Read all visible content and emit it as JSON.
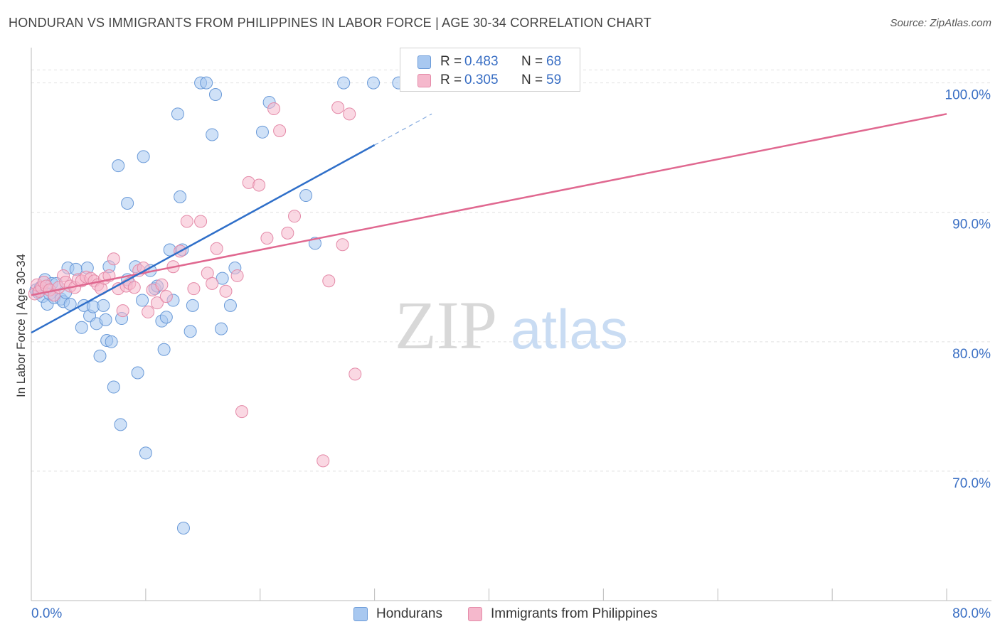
{
  "title": "HONDURAN VS IMMIGRANTS FROM PHILIPPINES IN LABOR FORCE | AGE 30-34 CORRELATION CHART",
  "source": "Source: ZipAtlas.com",
  "watermark": {
    "zip": "ZIP",
    "atlas": "atlas"
  },
  "legend_top": [
    {
      "r_label": "R = ",
      "r_value": "0.483",
      "n_label": "N = ",
      "n_value": "68"
    },
    {
      "r_label": "R = ",
      "r_value": "0.305",
      "n_label": "N = ",
      "n_value": "59"
    }
  ],
  "legend_bottom": [
    {
      "label": "Hondurans"
    },
    {
      "label": "Immigrants from Philippines"
    }
  ],
  "chart_data": {
    "type": "scatter",
    "title": "HONDURAN VS IMMIGRANTS FROM PHILIPPINES IN LABOR FORCE | AGE 30-34 CORRELATION CHART",
    "xlabel": "",
    "ylabel": "In Labor Force | Age 30-34",
    "xlim": [
      0,
      80
    ],
    "ylim": [
      60,
      103
    ],
    "x_tick_labels": [
      "0.0%",
      "80.0%"
    ],
    "y_ticks": [
      70,
      80,
      90,
      100
    ],
    "y_tick_labels": [
      "70.0%",
      "80.0%",
      "90.0%",
      "100.0%"
    ],
    "grid": true,
    "colors": {
      "hondurans_fill": "#a8c8f0",
      "hondurans_stroke": "#6a9ad8",
      "hondurans_line": "#2f6fc9",
      "philippines_fill": "#f5b8cc",
      "philippines_stroke": "#e48aa8",
      "philippines_line": "#e06890",
      "axis_label": "#3a6fc4",
      "grid": "#e0e0e0"
    },
    "series": [
      {
        "name": "Hondurans",
        "r": 0.483,
        "n": 68,
        "trend": {
          "x0": 0,
          "y0": 80.7,
          "x1": 30,
          "y1": 95.2,
          "dash_to_x": 35,
          "dash_to_y": 97.6
        },
        "points": [
          [
            0.4,
            84.0
          ],
          [
            0.6,
            83.8
          ],
          [
            0.8,
            84.2
          ],
          [
            1.0,
            83.5
          ],
          [
            1.2,
            84.8
          ],
          [
            1.4,
            82.9
          ],
          [
            1.6,
            83.7
          ],
          [
            1.8,
            84.5
          ],
          [
            2.0,
            83.4
          ],
          [
            2.2,
            84.5
          ],
          [
            2.6,
            83.3
          ],
          [
            2.8,
            83.1
          ],
          [
            3.0,
            83.8
          ],
          [
            3.2,
            85.7
          ],
          [
            3.4,
            82.9
          ],
          [
            3.9,
            85.6
          ],
          [
            4.4,
            81.1
          ],
          [
            4.6,
            82.8
          ],
          [
            4.9,
            85.7
          ],
          [
            5.1,
            82.0
          ],
          [
            5.4,
            82.7
          ],
          [
            5.7,
            81.4
          ],
          [
            6.0,
            78.9
          ],
          [
            6.3,
            82.8
          ],
          [
            6.5,
            81.7
          ],
          [
            6.6,
            80.1
          ],
          [
            6.8,
            85.8
          ],
          [
            7.0,
            80.0
          ],
          [
            7.2,
            76.5
          ],
          [
            7.6,
            93.6
          ],
          [
            7.8,
            73.6
          ],
          [
            7.9,
            81.8
          ],
          [
            8.4,
            90.7
          ],
          [
            8.4,
            84.8
          ],
          [
            9.1,
            85.8
          ],
          [
            9.3,
            77.6
          ],
          [
            9.7,
            83.2
          ],
          [
            9.8,
            94.3
          ],
          [
            10.0,
            71.4
          ],
          [
            10.4,
            85.5
          ],
          [
            10.8,
            84.1
          ],
          [
            11.0,
            84.3
          ],
          [
            11.4,
            81.6
          ],
          [
            11.6,
            79.4
          ],
          [
            11.8,
            81.9
          ],
          [
            12.1,
            87.1
          ],
          [
            12.4,
            83.2
          ],
          [
            12.8,
            97.6
          ],
          [
            13.0,
            91.2
          ],
          [
            13.2,
            87.1
          ],
          [
            13.3,
            65.6
          ],
          [
            13.9,
            80.8
          ],
          [
            14.1,
            82.8
          ],
          [
            14.8,
            100.0
          ],
          [
            15.3,
            100.0
          ],
          [
            15.8,
            96.0
          ],
          [
            16.1,
            99.1
          ],
          [
            16.6,
            81.0
          ],
          [
            16.7,
            84.9
          ],
          [
            17.4,
            82.8
          ],
          [
            17.8,
            85.7
          ],
          [
            20.2,
            96.2
          ],
          [
            20.8,
            98.5
          ],
          [
            24.0,
            91.3
          ],
          [
            24.8,
            87.6
          ],
          [
            27.3,
            100.0
          ],
          [
            29.9,
            100.0
          ],
          [
            32.1,
            100.0
          ]
        ]
      },
      {
        "name": "Immigrants from Philippines",
        "r": 0.305,
        "n": 59,
        "trend": {
          "x0": 0,
          "y0": 83.6,
          "x1": 80,
          "y1": 97.6
        },
        "points": [
          [
            0.3,
            83.7
          ],
          [
            0.5,
            84.4
          ],
          [
            0.7,
            83.9
          ],
          [
            0.9,
            84.2
          ],
          [
            1.1,
            84.6
          ],
          [
            1.3,
            84.3
          ],
          [
            1.6,
            84.0
          ],
          [
            2.0,
            83.6
          ],
          [
            2.4,
            84.2
          ],
          [
            2.8,
            85.1
          ],
          [
            3.0,
            84.6
          ],
          [
            3.4,
            84.3
          ],
          [
            3.8,
            84.2
          ],
          [
            4.1,
            84.8
          ],
          [
            4.4,
            84.7
          ],
          [
            4.8,
            85.0
          ],
          [
            5.2,
            84.9
          ],
          [
            5.5,
            84.7
          ],
          [
            5.8,
            84.4
          ],
          [
            6.1,
            84.1
          ],
          [
            6.4,
            84.9
          ],
          [
            6.8,
            85.1
          ],
          [
            7.2,
            86.4
          ],
          [
            7.6,
            84.1
          ],
          [
            8.0,
            82.4
          ],
          [
            8.3,
            84.3
          ],
          [
            8.6,
            84.5
          ],
          [
            9.0,
            84.2
          ],
          [
            9.4,
            85.5
          ],
          [
            9.8,
            85.7
          ],
          [
            10.2,
            82.3
          ],
          [
            10.6,
            84.0
          ],
          [
            11.0,
            83.0
          ],
          [
            11.4,
            84.4
          ],
          [
            11.8,
            83.5
          ],
          [
            12.4,
            85.8
          ],
          [
            13.0,
            87.0
          ],
          [
            13.6,
            89.3
          ],
          [
            14.2,
            84.1
          ],
          [
            14.8,
            89.3
          ],
          [
            15.4,
            85.3
          ],
          [
            15.8,
            84.5
          ],
          [
            16.2,
            87.2
          ],
          [
            17.0,
            83.9
          ],
          [
            18.0,
            85.1
          ],
          [
            18.4,
            74.6
          ],
          [
            19.0,
            92.3
          ],
          [
            19.9,
            92.1
          ],
          [
            20.6,
            88.0
          ],
          [
            21.2,
            98.0
          ],
          [
            21.7,
            96.3
          ],
          [
            22.4,
            88.4
          ],
          [
            23.0,
            89.7
          ],
          [
            25.5,
            70.8
          ],
          [
            26.0,
            84.7
          ],
          [
            26.8,
            98.1
          ],
          [
            27.2,
            87.5
          ],
          [
            27.8,
            97.6
          ],
          [
            28.3,
            77.5
          ]
        ]
      }
    ]
  }
}
